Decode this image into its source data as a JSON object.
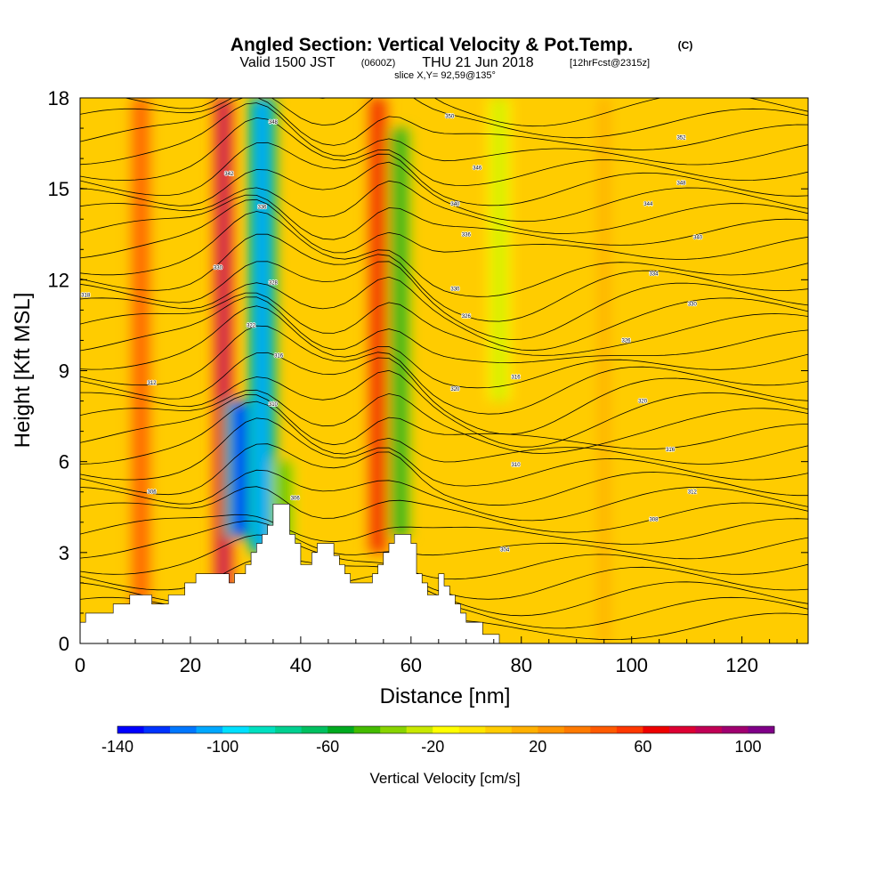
{
  "header": {
    "title": "Angled Section: Vertical Velocity & Pot.Temp.",
    "copyright": "(C)",
    "valid_prefix": "Valid 1500 JST",
    "valid_utc": "(0600Z)",
    "valid_date": "THU 21 Jun 2018",
    "forecast": "[12hrFcst@2315z]",
    "slice": "slice X,Y= 92,59@135°"
  },
  "chart_data": {
    "type": "heatmap",
    "title": "Angled Section: Vertical Velocity & Pot.Temp.",
    "xlabel": "Distance [nm]",
    "ylabel": "Height [Kft MSL]",
    "xlim": [
      0,
      132
    ],
    "ylim": [
      0,
      18
    ],
    "xticks": [
      0,
      20,
      40,
      60,
      80,
      100,
      120
    ],
    "yticks": [
      0,
      3,
      6,
      9,
      12,
      15,
      18
    ],
    "colorbar": {
      "label": "Vertical Velocity [cm/s]",
      "ticks": [
        -140,
        -100,
        -60,
        -20,
        20,
        60,
        100
      ],
      "range": [
        -140,
        110
      ],
      "step": 10,
      "colors": [
        "#0000ff",
        "#0033ff",
        "#0077ff",
        "#00a8ff",
        "#00e0ff",
        "#00e0c0",
        "#00d090",
        "#00c060",
        "#00aa20",
        "#44bb00",
        "#88d400",
        "#c8e800",
        "#ffff00",
        "#ffe600",
        "#ffcc00",
        "#ffb000",
        "#ff9500",
        "#ff7a00",
        "#ff5a00",
        "#ff3800",
        "#ee0000",
        "#dd0033",
        "#c00055",
        "#a00070",
        "#800088"
      ]
    },
    "velocity_features": [
      {
        "x": 11,
        "bottom": 0,
        "top": 18,
        "peak": 40
      },
      {
        "x": 26,
        "bottom": 0,
        "top": 18,
        "peak": 80
      },
      {
        "x": 33,
        "bottom": 3,
        "top": 18,
        "peak": -110
      },
      {
        "x": 29,
        "bottom": 3.5,
        "top": 8,
        "peak": -140
      },
      {
        "x": 37,
        "bottom": 2,
        "top": 6,
        "peak": -50
      },
      {
        "x": 54,
        "bottom": 3,
        "top": 18,
        "peak": 60
      },
      {
        "x": 58,
        "bottom": 3.5,
        "top": 17,
        "peak": -60
      },
      {
        "x": 76,
        "bottom": 8,
        "top": 18,
        "peak": -25
      },
      {
        "x": 95,
        "bottom": 0,
        "top": 18,
        "peak": 15
      }
    ],
    "potential_temperature_labels": [
      {
        "x": 1,
        "y": 11.5,
        "text": "318"
      },
      {
        "x": 13,
        "y": 8.6,
        "text": "312"
      },
      {
        "x": 13,
        "y": 5,
        "text": "306"
      },
      {
        "x": 35,
        "y": 17.2,
        "text": "348"
      },
      {
        "x": 27,
        "y": 15.5,
        "text": "342"
      },
      {
        "x": 33,
        "y": 14.4,
        "text": "336"
      },
      {
        "x": 25,
        "y": 12.4,
        "text": "330"
      },
      {
        "x": 35,
        "y": 11.9,
        "text": "328"
      },
      {
        "x": 31,
        "y": 10.5,
        "text": "322"
      },
      {
        "x": 36,
        "y": 9.5,
        "text": "316"
      },
      {
        "x": 35,
        "y": 7.9,
        "text": "310"
      },
      {
        "x": 39,
        "y": 4.8,
        "text": "306"
      },
      {
        "x": 67,
        "y": 17.4,
        "text": "350"
      },
      {
        "x": 72,
        "y": 15.7,
        "text": "346"
      },
      {
        "x": 68,
        "y": 14.5,
        "text": "340"
      },
      {
        "x": 70,
        "y": 13.5,
        "text": "336"
      },
      {
        "x": 68,
        "y": 11.7,
        "text": "330"
      },
      {
        "x": 70,
        "y": 10.8,
        "text": "326"
      },
      {
        "x": 68,
        "y": 8.4,
        "text": "320"
      },
      {
        "x": 79,
        "y": 8.8,
        "text": "316"
      },
      {
        "x": 79,
        "y": 5.9,
        "text": "310"
      },
      {
        "x": 77,
        "y": 3.1,
        "text": "304"
      },
      {
        "x": 109,
        "y": 16.7,
        "text": "352"
      },
      {
        "x": 109,
        "y": 15.2,
        "text": "348"
      },
      {
        "x": 103,
        "y": 14.5,
        "text": "344"
      },
      {
        "x": 112,
        "y": 13.4,
        "text": "340"
      },
      {
        "x": 104,
        "y": 12.2,
        "text": "334"
      },
      {
        "x": 111,
        "y": 11.2,
        "text": "330"
      },
      {
        "x": 99,
        "y": 10.0,
        "text": "326"
      },
      {
        "x": 102,
        "y": 8.0,
        "text": "320"
      },
      {
        "x": 107,
        "y": 6.4,
        "text": "316"
      },
      {
        "x": 111,
        "y": 5.0,
        "text": "312"
      },
      {
        "x": 104,
        "y": 4.1,
        "text": "308"
      }
    ],
    "terrain": [
      [
        0,
        0.7
      ],
      [
        1,
        0.7
      ],
      [
        1,
        1.0
      ],
      [
        6,
        1.0
      ],
      [
        6,
        1.3
      ],
      [
        9,
        1.3
      ],
      [
        9,
        1.6
      ],
      [
        13,
        1.6
      ],
      [
        13,
        1.3
      ],
      [
        16,
        1.3
      ],
      [
        16,
        1.6
      ],
      [
        19,
        1.6
      ],
      [
        19,
        2.0
      ],
      [
        21,
        2.0
      ],
      [
        21,
        2.3
      ],
      [
        27,
        2.3
      ],
      [
        27,
        2.0
      ],
      [
        28,
        2.0
      ],
      [
        28,
        2.3
      ],
      [
        30,
        2.3
      ],
      [
        30,
        2.6
      ],
      [
        31,
        2.6
      ],
      [
        31,
        3.0
      ],
      [
        32,
        3.0
      ],
      [
        32,
        3.3
      ],
      [
        33,
        3.3
      ],
      [
        33,
        3.6
      ],
      [
        34,
        3.6
      ],
      [
        34,
        3.9
      ],
      [
        35,
        3.9
      ],
      [
        35,
        4.6
      ],
      [
        38,
        4.6
      ],
      [
        38,
        3.6
      ],
      [
        39,
        3.6
      ],
      [
        39,
        3.3
      ],
      [
        40,
        3.3
      ],
      [
        40,
        2.6
      ],
      [
        42,
        2.6
      ],
      [
        42,
        3.0
      ],
      [
        43,
        3.0
      ],
      [
        43,
        3.3
      ],
      [
        46,
        3.3
      ],
      [
        46,
        2.9
      ],
      [
        47,
        2.9
      ],
      [
        47,
        2.6
      ],
      [
        48,
        2.6
      ],
      [
        48,
        2.3
      ],
      [
        49,
        2.3
      ],
      [
        49,
        2.0
      ],
      [
        53,
        2.0
      ],
      [
        53,
        2.3
      ],
      [
        54,
        2.3
      ],
      [
        54,
        2.6
      ],
      [
        55,
        2.6
      ],
      [
        55,
        3.0
      ],
      [
        56,
        3.0
      ],
      [
        56,
        3.3
      ],
      [
        57,
        3.3
      ],
      [
        57,
        3.6
      ],
      [
        60,
        3.6
      ],
      [
        60,
        3.3
      ],
      [
        61,
        3.3
      ],
      [
        61,
        2.3
      ],
      [
        62,
        2.3
      ],
      [
        62,
        2.0
      ],
      [
        63,
        2.0
      ],
      [
        63,
        1.6
      ],
      [
        65,
        1.6
      ],
      [
        65,
        2.3
      ],
      [
        66,
        2.3
      ],
      [
        66,
        1.9
      ],
      [
        67,
        1.9
      ],
      [
        67,
        1.6
      ],
      [
        68,
        1.6
      ],
      [
        68,
        1.3
      ],
      [
        69,
        1.3
      ],
      [
        69,
        1.0
      ],
      [
        70,
        1.0
      ],
      [
        70,
        0.7
      ],
      [
        73,
        0.7
      ],
      [
        73,
        0.3
      ],
      [
        76,
        0.3
      ],
      [
        76,
        0
      ],
      [
        0,
        0
      ]
    ]
  }
}
